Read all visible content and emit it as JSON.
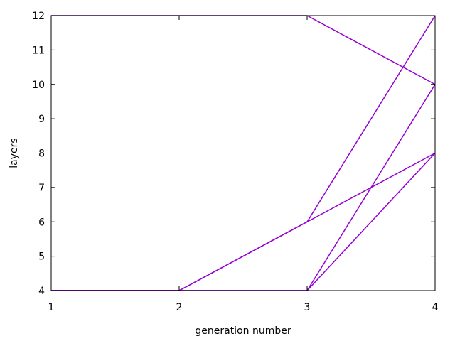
{
  "chart_data": {
    "type": "line",
    "title": "",
    "xlabel": "generation number",
    "ylabel": "layers",
    "xlim": [
      1,
      4
    ],
    "ylim": [
      4,
      12
    ],
    "xticks": [
      1,
      2,
      3,
      4
    ],
    "yticks": [
      4,
      5,
      6,
      7,
      8,
      9,
      10,
      11,
      12
    ],
    "grid": false,
    "legend": "none",
    "line_color": "#9400d3",
    "series": [
      {
        "x": [
          1,
          2,
          3,
          4
        ],
        "y": [
          12,
          12,
          12,
          10
        ]
      },
      {
        "x": [
          1,
          2,
          3,
          4
        ],
        "y": [
          4,
          4,
          6,
          12
        ]
      },
      {
        "x": [
          1,
          2,
          3,
          4
        ],
        "y": [
          4,
          4,
          6,
          8
        ]
      },
      {
        "x": [
          1,
          2,
          3,
          4
        ],
        "y": [
          4,
          4,
          4,
          10
        ]
      },
      {
        "x": [
          1,
          2,
          3,
          4
        ],
        "y": [
          4,
          4,
          4,
          8
        ]
      }
    ]
  }
}
